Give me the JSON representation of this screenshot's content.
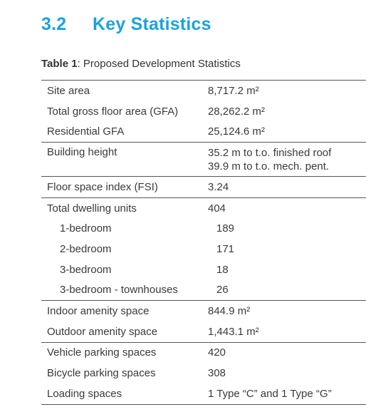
{
  "heading": {
    "number": "3.2",
    "title": "Key Statistics"
  },
  "caption": {
    "label": "Table 1",
    "text": ": Proposed Development Statistics"
  },
  "table": {
    "sections": [
      {
        "rows": [
          {
            "label": "Site area",
            "value": [
              "8,717.2 m²"
            ]
          },
          {
            "label": "Total gross floor area (GFA)",
            "value": [
              "28,262.2 m²"
            ]
          },
          {
            "label": "Residential GFA",
            "value": [
              "25,124.6 m²"
            ]
          }
        ]
      },
      {
        "rows": [
          {
            "label": "Building height",
            "value": [
              "35.2 m  to t.o. finished roof",
              "39.9 m to t.o. mech. pent."
            ]
          }
        ]
      },
      {
        "rows": [
          {
            "label": "Floor space index (FSI)",
            "value": [
              "3.24"
            ]
          }
        ]
      },
      {
        "rows": [
          {
            "label": "Total dwelling units",
            "value": [
              "404"
            ],
            "breakdown": [
              {
                "label": "1-bedroom",
                "value": [
                  "189"
                ]
              },
              {
                "label": "2-bedroom",
                "value": [
                  "171"
                ]
              },
              {
                "label": "3-bedroom",
                "value": [
                  "18"
                ]
              },
              {
                "label": "3-bedroom - townhouses",
                "value": [
                  "26"
                ]
              }
            ]
          }
        ]
      },
      {
        "rows": [
          {
            "label": "Indoor amenity space",
            "value": [
              "844.9 m²"
            ]
          },
          {
            "label": "Outdoor amenity space",
            "value": [
              "1,443.1 m²"
            ]
          }
        ]
      },
      {
        "rows": [
          {
            "label": "Vehicle parking spaces",
            "value": [
              "420"
            ]
          },
          {
            "label": "Bicycle parking spaces",
            "value": [
              "308"
            ]
          },
          {
            "label": "Loading spaces",
            "value": [
              "1 Type “C” and 1 Type “G”"
            ]
          }
        ]
      }
    ]
  }
}
